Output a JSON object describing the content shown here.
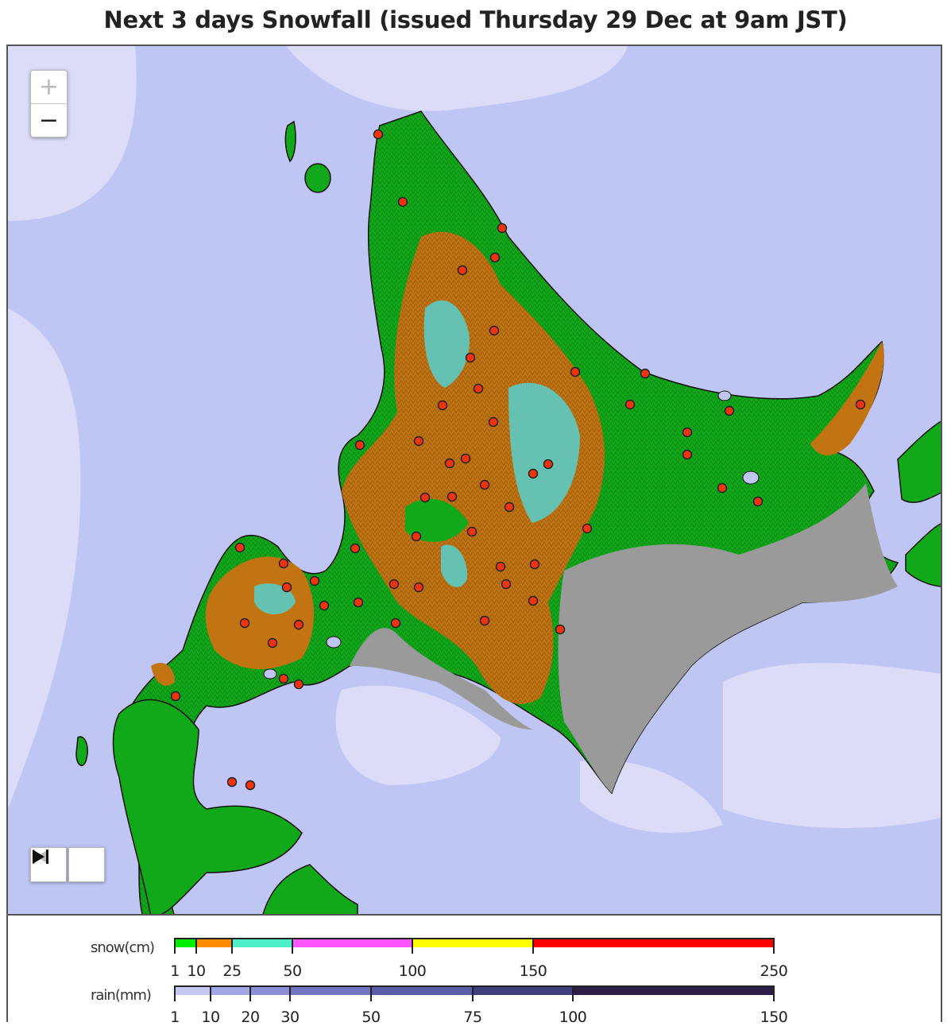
{
  "title": "Next 3 days Snowfall (issued Thursday 29 Dec at 9am JST)",
  "controls": {
    "zoom_in": "+",
    "zoom_out": "−",
    "icon_first": "skip-to-start-icon",
    "icon_last": "skip-to-end-icon"
  },
  "legend": {
    "snow": {
      "label": "snow(cm)",
      "ticks": [
        "1",
        "10",
        "25",
        "50",
        "100",
        "150",
        "250"
      ],
      "colors": [
        "#00ee00",
        "#ff8c00",
        "#4df0c8",
        "#ff55ff",
        "#ffff00",
        "#ff0000"
      ]
    },
    "rain": {
      "label": "rain(mm)",
      "ticks": [
        "1",
        "10",
        "20",
        "30",
        "50",
        "75",
        "100",
        "150"
      ],
      "colors": [
        "#c6c8f2",
        "#a2a6e4",
        "#8c8fd6",
        "#7276c2",
        "#5c5da8",
        "#3f3d7c",
        "#2a1d46"
      ]
    }
  },
  "colors": {
    "sea": "#c0c6f4",
    "sea_light": "#dcdcf8",
    "land_green": "#11a91a",
    "land_orange": "#c27412",
    "land_teal": "#65c2b2",
    "land_grey": "#9a9a9a",
    "marker": "#ee3311"
  }
}
